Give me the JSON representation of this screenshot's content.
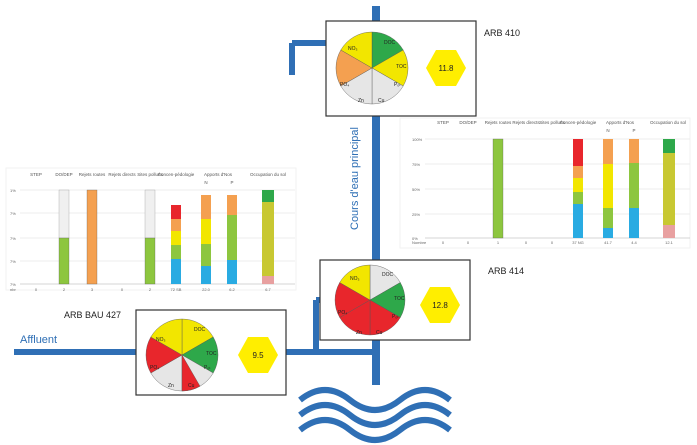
{
  "labels": {
    "river_main": "Cours d'eau principal",
    "affluent": "Affluent"
  },
  "stations": [
    {
      "name": "ARB 410",
      "score": "11.8"
    },
    {
      "name": "ARB 414",
      "score": "12.8"
    },
    {
      "name": "ARB BAU 427",
      "score": "9.5"
    }
  ],
  "pie_labels": [
    "NO₃",
    "DOC",
    "TOC",
    "PO₄",
    "Pₒₜ",
    "Zn",
    "Cu"
  ],
  "colors": {
    "river": "#2f6fb5",
    "green": "#2ea84a",
    "yellow": "#f2e600",
    "orange": "#f4a050",
    "red": "#e8262c",
    "grey": "#e6e6e6",
    "hexagon": "#ffee00"
  },
  "bar_chart_headers": [
    "STEP",
    "DO/DEP",
    "Rejets routes",
    "Rejets directs",
    "Sites pollués",
    "Concen-pédologie",
    "Apports d'Nos",
    "Occupation du sol"
  ],
  "bar_sub_headers": [
    "N",
    "P"
  ],
  "right_axis_ticks": [
    "100%",
    "75%",
    "50%",
    "25%",
    "0%"
  ],
  "left_axis_ticks": [
    "1%",
    "7%",
    "7%",
    "7%",
    "7%"
  ],
  "right_footer_values": [
    "Nombre",
    "0",
    "0",
    "1",
    "0",
    "0",
    "37 NG",
    "41.7",
    "4.4",
    "12.1"
  ],
  "left_footer_values": [
    "nbr",
    "0",
    "2",
    "3",
    "0",
    "2",
    "72 SB",
    "22.0",
    "6.2",
    "6.7"
  ]
}
